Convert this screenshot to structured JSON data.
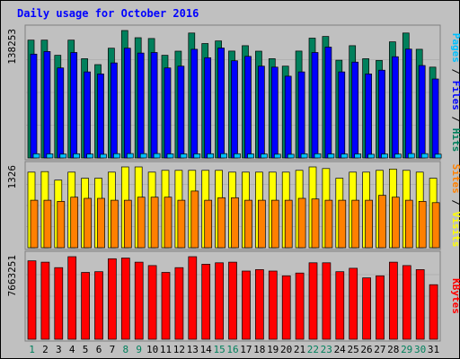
{
  "chart_data": {
    "type": "bar",
    "title": "Daily usage for October 2016",
    "categories": [
      "1",
      "2",
      "3",
      "4",
      "5",
      "6",
      "7",
      "8",
      "9",
      "10",
      "11",
      "12",
      "13",
      "14",
      "15",
      "16",
      "17",
      "18",
      "19",
      "20",
      "21",
      "22",
      "23",
      "24",
      "25",
      "26",
      "27",
      "28",
      "29",
      "30",
      "31"
    ],
    "weekend_days": [
      "1",
      "8",
      "9",
      "15",
      "16",
      "22",
      "23",
      "29",
      "30"
    ],
    "panels": [
      {
        "id": "top",
        "ymax_label": "138253",
        "ymax": 138253,
        "right_legend": [
          {
            "text": "Pages",
            "color": "#00c0ff"
          },
          {
            "text": " / ",
            "color": "#000000"
          },
          {
            "text": "Files",
            "color": "#0000ff"
          },
          {
            "text": " / ",
            "color": "#000000"
          },
          {
            "text": "Hits",
            "color": "#00805c"
          }
        ],
        "series": [
          {
            "name": "Hits",
            "color": "#00805c",
            "values": [
              127800,
              127800,
              111400,
              127800,
              107700,
              101300,
              119100,
              138253,
              130500,
              129600,
              111400,
              115900,
              135500,
              124100,
              127000,
              116000,
              121800,
              115900,
              107700,
              99600,
              116000,
              130000,
              131800,
              106000,
              121800,
              107700,
              105800,
              126000,
              135500,
              117900,
              98500
            ]
          },
          {
            "name": "Files",
            "color": "#0000ff",
            "values": [
              112600,
              115500,
              97700,
              114400,
              93400,
              91100,
              103100,
              119100,
              113800,
              114400,
              97700,
              99600,
              117900,
              108800,
              119300,
              105400,
              110200,
              99600,
              98500,
              88700,
              93400,
              114400,
              120200,
              93400,
              104000,
              91100,
              95200,
              109800,
              118100,
              100300,
              85700
            ]
          },
          {
            "name": "Pages",
            "color": "#00c0ff",
            "values": [
              4600,
              4500,
              4200,
              4600,
              4300,
              4000,
              4700,
              4800,
              4700,
              4800,
              4500,
              4400,
              4500,
              4600,
              4700,
              4600,
              4400,
              4300,
              4100,
              4000,
              4500,
              4600,
              4400,
              4300,
              4400,
              4000,
              4300,
              4200,
              4800,
              4700,
              4100
            ]
          }
        ]
      },
      {
        "id": "middle",
        "ymax_label": "1326",
        "ymax": 1326,
        "right_legend": [
          {
            "text": "Sites",
            "color": "#ff8000"
          },
          {
            "text": " / ",
            "color": "#000000"
          },
          {
            "text": "Visits",
            "color": "#ffff00"
          }
        ],
        "series": [
          {
            "name": "Visits",
            "color": "#ffff00",
            "values": [
              1240,
              1250,
              1110,
              1240,
              1140,
              1140,
              1240,
              1326,
              1326,
              1240,
              1270,
              1270,
              1270,
              1270,
              1270,
              1240,
              1240,
              1240,
              1240,
              1240,
              1270,
              1326,
              1300,
              1140,
              1240,
              1240,
              1270,
              1290,
              1270,
              1240,
              1140
            ]
          },
          {
            "name": "Sites",
            "color": "#ff8000",
            "values": [
              780,
              780,
              760,
              830,
              810,
              810,
              780,
              780,
              830,
              830,
              830,
              780,
              930,
              780,
              820,
              820,
              780,
              780,
              780,
              780,
              810,
              800,
              780,
              780,
              780,
              780,
              860,
              830,
              780,
              760,
              740
            ]
          }
        ]
      },
      {
        "id": "bottom",
        "ymax_label": "7663251",
        "ymax": 7663251,
        "right_legend": [
          {
            "text": "KBytes",
            "color": "#ff0000"
          }
        ],
        "series": [
          {
            "name": "KBytes",
            "color": "#ff0000",
            "values": [
              7283000,
              7157000,
              6651000,
              7663251,
              6208000,
              6271000,
              7473000,
              7536000,
              7157000,
              6841000,
              6208000,
              6651000,
              7663251,
              6967000,
              7093000,
              7157000,
              6334000,
              6461000,
              6334000,
              5891000,
              6145000,
              7093000,
              7093000,
              6271000,
              6588000,
              5701000,
              5891000,
              7157000,
              6841000,
              6461000,
              5068000
            ]
          }
        ]
      }
    ]
  }
}
